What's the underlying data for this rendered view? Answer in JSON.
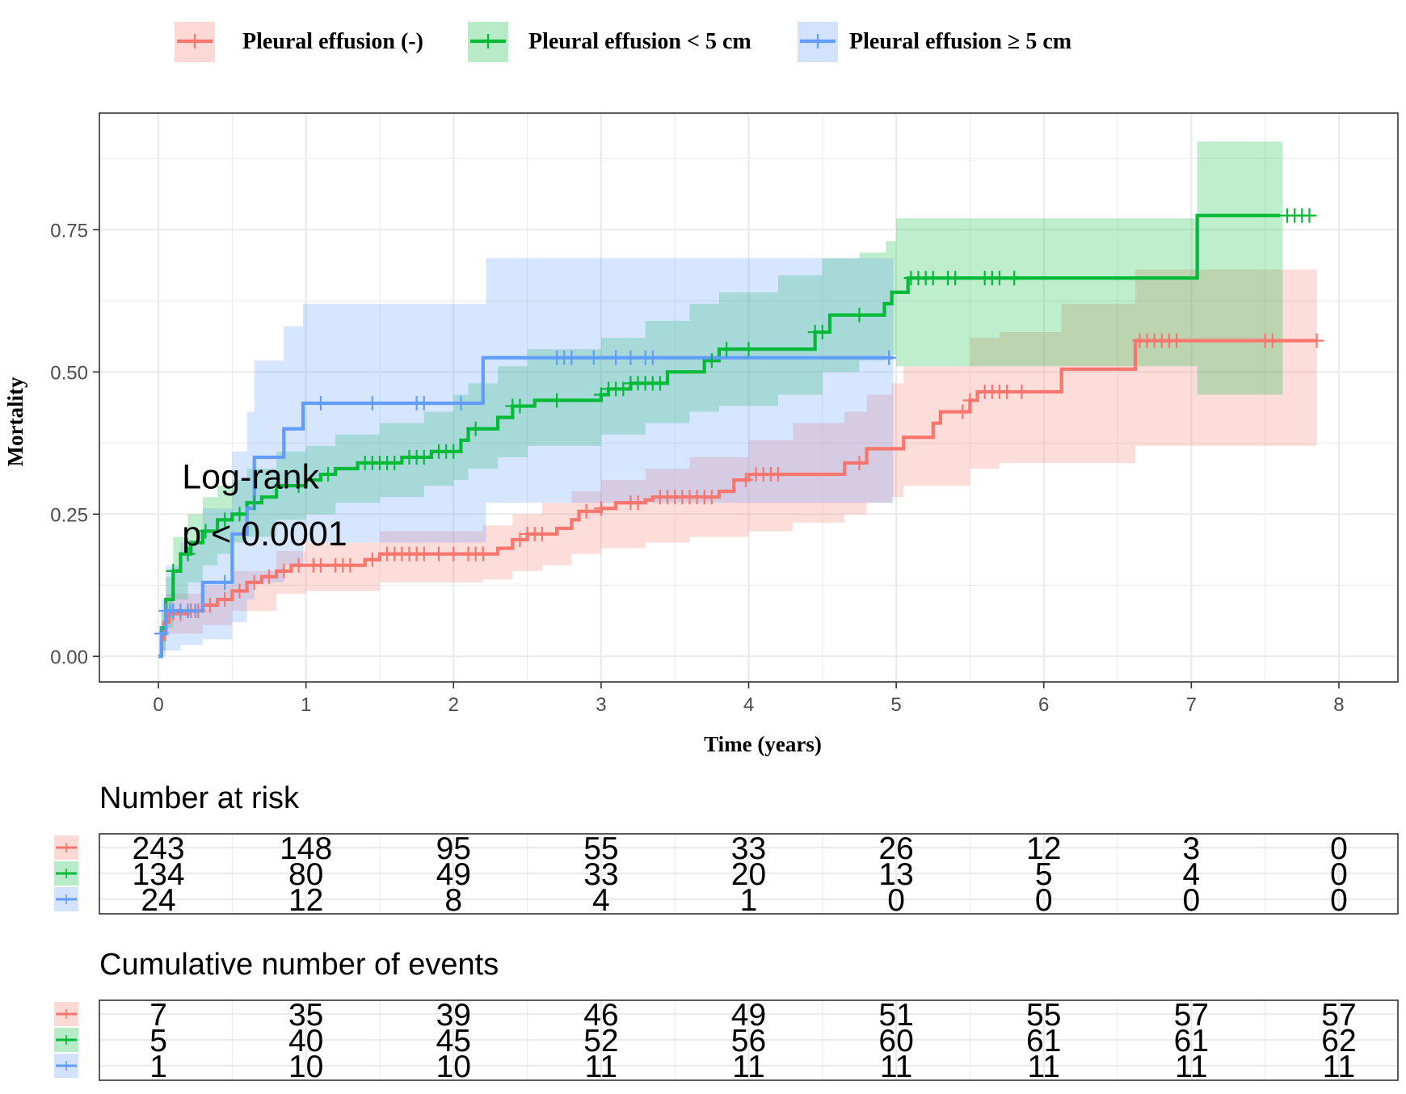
{
  "chart_data": {
    "type": "line",
    "subtype": "kaplan-meier-cumulative-incidence",
    "title": "",
    "xlabel": "Time (years)",
    "ylabel": "Mortality",
    "xlim": [
      -0.4,
      8.4
    ],
    "ylim": [
      -0.045,
      0.955
    ],
    "x_ticks": [
      0,
      1,
      2,
      3,
      4,
      5,
      6,
      7,
      8
    ],
    "x_tick_labels": [
      "0",
      "1",
      "2",
      "3",
      "4",
      "5",
      "6",
      "7",
      "8"
    ],
    "y_ticks": [
      0,
      0.25,
      0.5,
      0.75
    ],
    "y_tick_labels": [
      "0.00",
      "0.25",
      "0.50",
      "0.75"
    ],
    "grid": true,
    "legend_position": "top",
    "annotation": {
      "line1": "Log-rank",
      "line2": "p < 0.0001",
      "x": 0.16,
      "y": [
        0.295,
        0.195
      ]
    },
    "series": [
      {
        "name": "Pleural effusion (-)",
        "color": "#F8766D",
        "fill": "#F8766D",
        "steps": [
          [
            0,
            0
          ],
          [
            0.02,
            0.03
          ],
          [
            0.04,
            0.06
          ],
          [
            0.07,
            0.075
          ],
          [
            0.2,
            0.08
          ],
          [
            0.3,
            0.09
          ],
          [
            0.4,
            0.1
          ],
          [
            0.5,
            0.115
          ],
          [
            0.6,
            0.13
          ],
          [
            0.7,
            0.14
          ],
          [
            0.8,
            0.15
          ],
          [
            0.9,
            0.16
          ],
          [
            1.4,
            0.17
          ],
          [
            1.5,
            0.18
          ],
          [
            2.3,
            0.19
          ],
          [
            2.4,
            0.205
          ],
          [
            2.5,
            0.215
          ],
          [
            2.7,
            0.225
          ],
          [
            2.8,
            0.24
          ],
          [
            2.85,
            0.255
          ],
          [
            3.0,
            0.26
          ],
          [
            3.1,
            0.27
          ],
          [
            3.3,
            0.275
          ],
          [
            3.35,
            0.28
          ],
          [
            3.8,
            0.29
          ],
          [
            3.9,
            0.31
          ],
          [
            4.0,
            0.32
          ],
          [
            4.65,
            0.34
          ],
          [
            4.8,
            0.365
          ],
          [
            5.05,
            0.385
          ],
          [
            5.25,
            0.41
          ],
          [
            5.3,
            0.43
          ],
          [
            5.5,
            0.45
          ],
          [
            5.55,
            0.465
          ],
          [
            6.12,
            0.505
          ],
          [
            6.62,
            0.555
          ],
          [
            7.85,
            0.555
          ]
        ],
        "ci": [
          [
            0,
            0,
            0
          ],
          [
            0.02,
            0.01,
            0.06
          ],
          [
            0.05,
            0.04,
            0.11
          ],
          [
            0.3,
            0.055,
            0.125
          ],
          [
            0.5,
            0.08,
            0.15
          ],
          [
            0.8,
            0.11,
            0.185
          ],
          [
            1.0,
            0.115,
            0.2
          ],
          [
            1.5,
            0.13,
            0.22
          ],
          [
            2.2,
            0.135,
            0.23
          ],
          [
            2.4,
            0.15,
            0.25
          ],
          [
            2.6,
            0.16,
            0.27
          ],
          [
            2.8,
            0.18,
            0.29
          ],
          [
            3.0,
            0.19,
            0.31
          ],
          [
            3.3,
            0.2,
            0.33
          ],
          [
            3.6,
            0.21,
            0.35
          ],
          [
            4.0,
            0.22,
            0.38
          ],
          [
            4.3,
            0.235,
            0.41
          ],
          [
            4.65,
            0.25,
            0.43
          ],
          [
            4.8,
            0.27,
            0.46
          ],
          [
            4.97,
            0.28,
            0.48
          ],
          [
            5.05,
            0.3,
            0.51
          ],
          [
            5.5,
            0.33,
            0.56
          ],
          [
            5.7,
            0.34,
            0.57
          ],
          [
            6.12,
            0.34,
            0.62
          ],
          [
            6.62,
            0.37,
            0.68
          ],
          [
            7.85,
            0.37,
            0.68
          ]
        ],
        "censor_x": [
          0.1,
          0.15,
          0.22,
          0.27,
          0.35,
          0.45,
          0.55,
          0.65,
          0.75,
          0.85,
          0.95,
          1.05,
          1.1,
          1.2,
          1.25,
          1.3,
          1.45,
          1.55,
          1.6,
          1.65,
          1.7,
          1.75,
          1.8,
          1.9,
          2.0,
          2.1,
          2.15,
          2.2,
          2.45,
          2.5,
          2.55,
          2.6,
          2.9,
          3.0,
          3.2,
          3.25,
          3.4,
          3.45,
          3.5,
          3.55,
          3.6,
          3.65,
          3.7,
          3.75,
          3.98,
          4.05,
          4.1,
          4.15,
          4.2,
          4.75,
          5.45,
          5.5,
          5.6,
          5.65,
          5.7,
          5.75,
          5.85,
          6.65,
          6.7,
          6.75,
          6.8,
          6.85,
          6.9,
          7.5,
          7.55,
          7.85
        ]
      },
      {
        "name": "Pleural effusion < 5 cm",
        "color": "#00BA38",
        "fill": "#00BA38",
        "steps": [
          [
            0,
            0
          ],
          [
            0.02,
            0.05
          ],
          [
            0.05,
            0.1
          ],
          [
            0.1,
            0.15
          ],
          [
            0.15,
            0.18
          ],
          [
            0.22,
            0.2
          ],
          [
            0.3,
            0.22
          ],
          [
            0.4,
            0.24
          ],
          [
            0.5,
            0.25
          ],
          [
            0.6,
            0.27
          ],
          [
            0.7,
            0.28
          ],
          [
            0.8,
            0.3
          ],
          [
            1.0,
            0.31
          ],
          [
            1.1,
            0.32
          ],
          [
            1.2,
            0.33
          ],
          [
            1.35,
            0.34
          ],
          [
            1.65,
            0.35
          ],
          [
            1.85,
            0.36
          ],
          [
            2.05,
            0.38
          ],
          [
            2.1,
            0.4
          ],
          [
            2.3,
            0.42
          ],
          [
            2.4,
            0.44
          ],
          [
            2.55,
            0.45
          ],
          [
            3.0,
            0.46
          ],
          [
            3.05,
            0.47
          ],
          [
            3.2,
            0.48
          ],
          [
            3.45,
            0.5
          ],
          [
            3.7,
            0.52
          ],
          [
            3.8,
            0.54
          ],
          [
            4.45,
            0.57
          ],
          [
            4.55,
            0.6
          ],
          [
            4.92,
            0.62
          ],
          [
            4.97,
            0.64
          ],
          [
            5.08,
            0.665
          ],
          [
            7.04,
            0.775
          ],
          [
            7.6,
            0.775
          ]
        ],
        "ci": [
          [
            0,
            0,
            0
          ],
          [
            0.02,
            0.01,
            0.08
          ],
          [
            0.05,
            0.05,
            0.14
          ],
          [
            0.1,
            0.1,
            0.21
          ],
          [
            0.2,
            0.13,
            0.25
          ],
          [
            0.3,
            0.16,
            0.28
          ],
          [
            0.4,
            0.18,
            0.3
          ],
          [
            0.5,
            0.2,
            0.31
          ],
          [
            0.6,
            0.21,
            0.33
          ],
          [
            0.8,
            0.24,
            0.36
          ],
          [
            1.0,
            0.25,
            0.37
          ],
          [
            1.2,
            0.27,
            0.39
          ],
          [
            1.5,
            0.28,
            0.41
          ],
          [
            1.8,
            0.3,
            0.43
          ],
          [
            2.0,
            0.31,
            0.46
          ],
          [
            2.1,
            0.33,
            0.48
          ],
          [
            2.3,
            0.35,
            0.51
          ],
          [
            2.5,
            0.37,
            0.54
          ],
          [
            3.0,
            0.39,
            0.56
          ],
          [
            3.3,
            0.41,
            0.59
          ],
          [
            3.6,
            0.43,
            0.62
          ],
          [
            3.8,
            0.44,
            0.64
          ],
          [
            4.2,
            0.46,
            0.67
          ],
          [
            4.5,
            0.5,
            0.7
          ],
          [
            4.75,
            0.52,
            0.71
          ],
          [
            4.93,
            0.53,
            0.73
          ],
          [
            5.0,
            0.51,
            0.77
          ],
          [
            7.04,
            0.46,
            0.905
          ],
          [
            7.62,
            0.46,
            0.905
          ]
        ],
        "censor_x": [
          0.1,
          0.2,
          0.32,
          0.45,
          0.55,
          0.65,
          0.95,
          1.15,
          1.4,
          1.45,
          1.5,
          1.55,
          1.6,
          1.7,
          1.75,
          1.8,
          1.9,
          1.95,
          2.0,
          2.15,
          2.4,
          2.45,
          2.7,
          3.0,
          3.05,
          3.1,
          3.15,
          3.2,
          3.25,
          3.3,
          3.35,
          3.4,
          3.75,
          3.85,
          4.0,
          4.45,
          4.5,
          4.75,
          5.1,
          5.15,
          5.2,
          5.25,
          5.35,
          5.4,
          5.6,
          5.65,
          5.7,
          5.8,
          7.65,
          7.7,
          7.75,
          7.8
        ]
      },
      {
        "name": "Pleural effusion ≥ 5 cm",
        "color": "#619CFF",
        "fill": "#619CFF",
        "steps": [
          [
            0,
            0
          ],
          [
            0.02,
            0.04
          ],
          [
            0.05,
            0.08
          ],
          [
            0.3,
            0.13
          ],
          [
            0.5,
            0.215
          ],
          [
            0.6,
            0.26
          ],
          [
            0.65,
            0.35
          ],
          [
            0.85,
            0.4
          ],
          [
            0.98,
            0.445
          ],
          [
            2.2,
            0.525
          ],
          [
            4.98,
            0.525
          ]
        ],
        "ci": [
          [
            0,
            0,
            0
          ],
          [
            0.02,
            0.0,
            0.1
          ],
          [
            0.05,
            0.01,
            0.16
          ],
          [
            0.15,
            0.02,
            0.2
          ],
          [
            0.3,
            0.03,
            0.26
          ],
          [
            0.5,
            0.06,
            0.36
          ],
          [
            0.6,
            0.1,
            0.43
          ],
          [
            0.65,
            0.13,
            0.52
          ],
          [
            0.85,
            0.16,
            0.58
          ],
          [
            0.98,
            0.2,
            0.62
          ],
          [
            2.22,
            0.27,
            0.7
          ],
          [
            4.98,
            0.27,
            0.7
          ]
        ],
        "censor_x": [
          0.02,
          0.05,
          0.08,
          0.1,
          0.15,
          0.2,
          0.25,
          0.45,
          1.1,
          1.45,
          1.75,
          1.8,
          2.05,
          2.7,
          2.75,
          2.8,
          2.95,
          3.1,
          3.2,
          3.3,
          3.35,
          4.95
        ]
      }
    ],
    "risk_tables": [
      {
        "title": "Number at risk",
        "times": [
          0,
          1,
          2,
          3,
          4,
          5,
          6,
          7,
          8
        ],
        "rows": [
          {
            "series": "Pleural effusion (-)",
            "values": [
              "243",
              "148",
              "95",
              "55",
              "33",
              "26",
              "12",
              "3",
              "0"
            ]
          },
          {
            "series": "Pleural effusion < 5 cm",
            "values": [
              "134",
              "80",
              "49",
              "33",
              "20",
              "13",
              "5",
              "4",
              "0"
            ]
          },
          {
            "series": "Pleural effusion ≥ 5 cm",
            "values": [
              "24",
              "12",
              "8",
              "4",
              "1",
              "0",
              "0",
              "0",
              "0"
            ]
          }
        ]
      },
      {
        "title": "Cumulative number of events",
        "times": [
          0,
          1,
          2,
          3,
          4,
          5,
          6,
          7,
          8
        ],
        "rows": [
          {
            "series": "Pleural effusion (-)",
            "values": [
              "7",
              "35",
              "39",
              "46",
              "49",
              "51",
              "55",
              "57",
              "57"
            ]
          },
          {
            "series": "Pleural effusion < 5 cm",
            "values": [
              "5",
              "40",
              "45",
              "52",
              "56",
              "60",
              "61",
              "61",
              "62"
            ]
          },
          {
            "series": "Pleural effusion ≥ 5 cm",
            "values": [
              "1",
              "10",
              "10",
              "11",
              "11",
              "11",
              "11",
              "11",
              "11"
            ]
          }
        ]
      }
    ]
  }
}
